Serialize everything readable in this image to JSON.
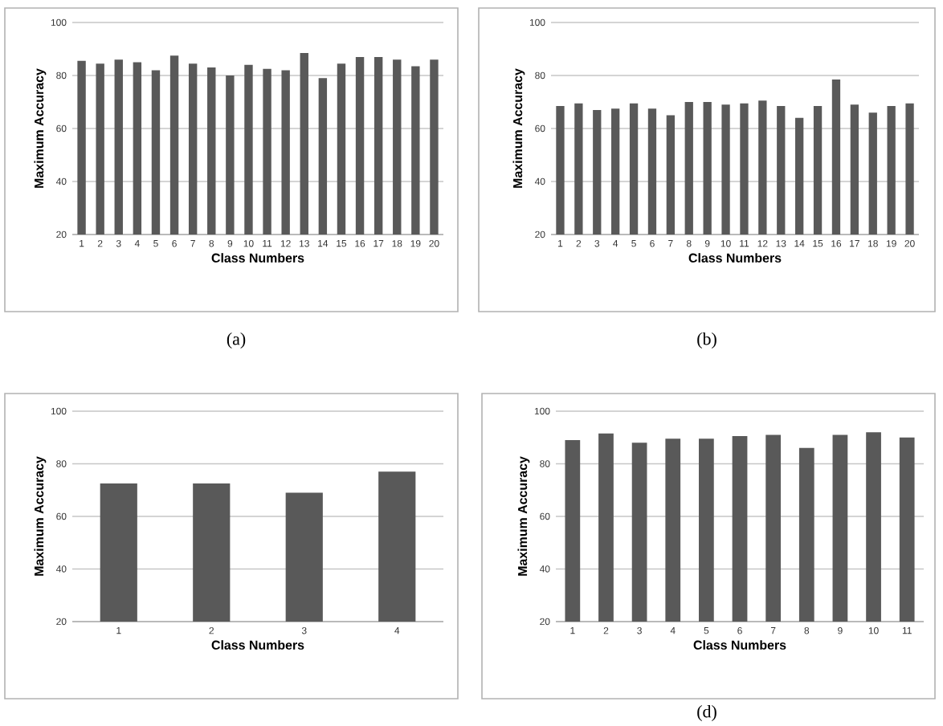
{
  "chart_data": [
    {
      "type": "bar",
      "xlabel": "Class Numbers",
      "ylabel": "Maximum Accuracy",
      "categories": [
        "1",
        "2",
        "3",
        "4",
        "5",
        "6",
        "7",
        "8",
        "9",
        "10",
        "11",
        "12",
        "13",
        "14",
        "15",
        "16",
        "17",
        "18",
        "19",
        "20"
      ],
      "values": [
        85.5,
        84.5,
        86,
        85,
        82,
        87.5,
        84.5,
        83,
        80,
        84,
        82.5,
        82,
        88.5,
        79,
        84.5,
        87,
        87,
        86,
        83.5,
        86
      ],
      "color": "#595959",
      "ylim": [
        20,
        100
      ],
      "yticks": [
        20,
        40,
        60,
        80,
        100
      ],
      "grid": "y",
      "annotations": [
        "(a)"
      ]
    },
    {
      "type": "bar",
      "xlabel": "Class Numbers",
      "ylabel": "Maximum Accuracy",
      "categories": [
        "1",
        "2",
        "3",
        "4",
        "5",
        "6",
        "7",
        "8",
        "9",
        "10",
        "11",
        "12",
        "13",
        "14",
        "15",
        "16",
        "17",
        "18",
        "19",
        "20"
      ],
      "values": [
        68.5,
        69.5,
        67,
        67.5,
        69.5,
        67.5,
        65,
        70,
        70,
        69,
        69.5,
        70.5,
        68.5,
        64,
        68.5,
        78.5,
        69,
        66,
        68.5,
        69.5
      ],
      "color": "#595959",
      "ylim": [
        20,
        100
      ],
      "yticks": [
        20,
        40,
        60,
        80,
        100
      ],
      "grid": "y",
      "annotations": [
        "(b)"
      ]
    },
    {
      "type": "bar",
      "xlabel": "Class Numbers",
      "ylabel": "Maximum Accuracy",
      "categories": [
        "1",
        "2",
        "3",
        "4"
      ],
      "values": [
        72.5,
        72.5,
        69,
        77
      ],
      "color": "#595959",
      "ylim": [
        20,
        100
      ],
      "yticks": [
        20,
        40,
        60,
        80,
        100
      ],
      "grid": "y"
    },
    {
      "type": "bar",
      "xlabel": "Class Numbers",
      "ylabel": "Maximum Accuracy",
      "categories": [
        "1",
        "2",
        "3",
        "4",
        "5",
        "6",
        "7",
        "8",
        "9",
        "10",
        "11"
      ],
      "values": [
        89,
        91.5,
        88,
        89.5,
        89.5,
        90.5,
        91,
        86,
        91,
        92,
        90
      ],
      "color": "#595959",
      "ylim": [
        20,
        100
      ],
      "yticks": [
        20,
        40,
        60,
        80,
        100
      ],
      "grid": "y",
      "annotations": [
        "(d)"
      ]
    }
  ]
}
